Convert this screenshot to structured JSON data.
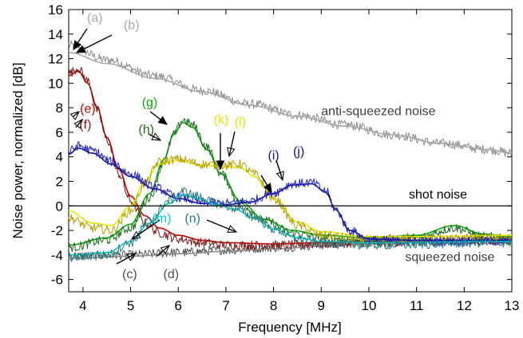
{
  "chart_data": {
    "type": "line",
    "xlabel": "Frequency [MHz]",
    "ylabel": "Noise power, normalized [dB]",
    "xlim": [
      3.7,
      13
    ],
    "ylim": [
      -7,
      16
    ],
    "xticks": [
      "4",
      "5",
      "6",
      "7",
      "8",
      "9",
      "10",
      "11",
      "12",
      "13"
    ],
    "yticks": [
      "-6",
      "-4",
      "-2",
      "0",
      "2",
      "4",
      "6",
      "8",
      "10",
      "12",
      "14",
      "16"
    ],
    "grid": false,
    "legend": "none",
    "colors": {
      "gray_measured": "#8c8c8c",
      "gray_fit": "#a8a8a8",
      "dark_gray": "#505050",
      "red": "#cc0000",
      "dark_red": "#7a1a1a",
      "green": "#00b000",
      "dark_green": "#1f6a1f",
      "yellow": "#e6e600",
      "olive": "#b3a300",
      "blue": "#1010a0",
      "cyan": "#00c8c8",
      "teal": "#2a7f7f",
      "black": "#000000"
    },
    "series": [
      {
        "key": "a",
        "color": "#8c8c8c",
        "style": "noisy",
        "x": [
          3.7,
          4.5,
          5.5,
          6.5,
          7.5,
          8.5,
          9.5,
          10.5,
          11.5,
          12.5,
          13
        ],
        "y": [
          13.1,
          11.9,
          10.6,
          9.4,
          8.3,
          7.4,
          6.6,
          5.8,
          5.1,
          4.6,
          4.3
        ]
      },
      {
        "key": "b",
        "color": "#a8a8a8",
        "style": "smooth",
        "x": [
          3.7,
          4.5,
          5.5,
          6.5,
          7.5,
          8.5,
          9.5,
          10.5,
          11.5,
          12.5,
          13
        ],
        "y": [
          12.5,
          11.6,
          10.4,
          9.3,
          8.2,
          7.3,
          6.5,
          5.8,
          5.1,
          4.6,
          4.3
        ]
      },
      {
        "key": "c",
        "color": "#505050",
        "style": "noisy",
        "x": [
          3.7,
          5,
          6,
          7,
          8,
          9,
          10,
          11,
          12,
          13
        ],
        "y": [
          -4.1,
          -4.0,
          -3.8,
          -3.6,
          -3.4,
          -3.2,
          -3.0,
          -2.9,
          -2.8,
          -2.7
        ]
      },
      {
        "key": "d",
        "color": "#8c8c8c",
        "style": "smooth",
        "x": [
          3.7,
          5,
          6,
          7,
          8,
          9,
          10,
          11,
          12,
          13
        ],
        "y": [
          -4.3,
          -4.1,
          -3.9,
          -3.7,
          -3.5,
          -3.3,
          -3.1,
          -3.0,
          -2.9,
          -2.8
        ]
      },
      {
        "key": "e",
        "color": "#cc0000",
        "style": "smooth",
        "x": [
          3.7,
          3.9,
          4.1,
          4.3,
          4.5,
          4.75,
          5.0,
          5.3,
          5.6,
          6.0,
          6.5,
          7.0,
          8.0,
          9.0,
          10.0,
          13.0
        ],
        "y": [
          10.6,
          11.0,
          10.0,
          8.0,
          5.6,
          3.0,
          0.8,
          -0.8,
          -1.8,
          -2.4,
          -2.8,
          -3.0,
          -3.1,
          -3.0,
          -2.9,
          -2.8
        ]
      },
      {
        "key": "f",
        "color": "#7a1a1a",
        "style": "noisy",
        "x": [
          3.7,
          3.9,
          4.1,
          4.3,
          4.5,
          4.75,
          5.0,
          5.3,
          5.6,
          6.0,
          6.5,
          7.0,
          8.0,
          9.0,
          10.0,
          13.0
        ],
        "y": [
          10.8,
          11.2,
          10.2,
          7.8,
          5.4,
          2.6,
          0.4,
          -1.4,
          -2.2,
          -2.7,
          -3.0,
          -3.2,
          -3.2,
          -3.1,
          -3.0,
          -2.8
        ]
      },
      {
        "key": "g",
        "color": "#00b000",
        "style": "smooth",
        "x": [
          3.7,
          4.5,
          5.0,
          5.4,
          5.7,
          5.9,
          6.1,
          6.3,
          6.6,
          6.9,
          7.3,
          7.8,
          8.4,
          9.0,
          10.0,
          11.0,
          11.8,
          12.4,
          13.0
        ],
        "y": [
          -3.2,
          -2.6,
          -1.5,
          1.0,
          3.8,
          5.8,
          6.8,
          6.4,
          4.6,
          2.6,
          0.4,
          -1.1,
          -2.0,
          -2.4,
          -2.6,
          -2.4,
          -1.6,
          -2.3,
          -2.5
        ]
      },
      {
        "key": "h",
        "color": "#1f6a1f",
        "style": "noisy",
        "x": [
          3.7,
          4.5,
          5.0,
          5.4,
          5.7,
          5.9,
          6.1,
          6.3,
          6.6,
          6.9,
          7.3,
          7.8,
          8.4,
          9.0,
          10.0,
          11.0,
          11.8,
          12.4,
          13.0
        ],
        "y": [
          -3.4,
          -2.8,
          -1.8,
          0.7,
          3.6,
          5.8,
          7.0,
          6.6,
          4.8,
          2.6,
          0.2,
          -1.2,
          -2.2,
          -2.6,
          -2.8,
          -2.6,
          -1.8,
          -2.5,
          -2.7
        ]
      },
      {
        "key": "k",
        "color": "#e6e600",
        "style": "smooth",
        "x": [
          3.7,
          4.2,
          4.6,
          5.0,
          5.3,
          5.6,
          6.0,
          6.5,
          7.0,
          7.3,
          7.6,
          8.0,
          8.5,
          9.0,
          10.0,
          11.0,
          13.0
        ],
        "y": [
          -0.4,
          -1.4,
          -1.6,
          0.0,
          2.0,
          3.4,
          3.7,
          3.3,
          3.2,
          3.1,
          2.4,
          0.6,
          -1.3,
          -2.1,
          -2.5,
          -2.5,
          -2.4
        ]
      },
      {
        "key": "l",
        "color": "#b3a300",
        "style": "noisy",
        "x": [
          3.7,
          4.2,
          4.6,
          5.0,
          5.3,
          5.6,
          6.0,
          6.5,
          7.0,
          7.3,
          7.6,
          8.0,
          8.5,
          9.0,
          10.0,
          11.0,
          13.0
        ],
        "y": [
          -1.0,
          -1.8,
          -2.0,
          -0.4,
          1.8,
          3.6,
          3.8,
          3.4,
          3.3,
          3.4,
          2.6,
          0.6,
          -1.6,
          -2.4,
          -2.8,
          -2.7,
          -2.6
        ]
      },
      {
        "key": "i",
        "color": "#1010a0",
        "style": "smooth",
        "x": [
          3.7,
          3.9,
          4.2,
          4.6,
          5.0,
          5.5,
          6.0,
          6.5,
          7.0,
          7.5,
          8.0,
          8.4,
          8.8,
          9.1,
          9.3,
          9.6,
          10.0,
          11.0,
          13.0
        ],
        "y": [
          4.2,
          4.7,
          4.3,
          3.4,
          2.4,
          1.4,
          0.6,
          0.2,
          0.1,
          0.3,
          1.0,
          1.7,
          1.8,
          1.1,
          -0.3,
          -2.0,
          -2.7,
          -2.8,
          -2.8
        ]
      },
      {
        "key": "j",
        "color": "#2020c0",
        "style": "noisy",
        "x": [
          3.7,
          3.9,
          4.2,
          4.6,
          5.0,
          5.5,
          6.0,
          6.5,
          7.0,
          7.5,
          8.0,
          8.4,
          8.8,
          9.1,
          9.3,
          9.6,
          10.0,
          11.0,
          13.0
        ],
        "y": [
          4.4,
          4.9,
          4.5,
          3.6,
          2.6,
          1.5,
          0.7,
          0.3,
          0.2,
          0.4,
          1.1,
          1.8,
          1.9,
          1.2,
          -0.3,
          -2.0,
          -2.8,
          -2.9,
          -2.9
        ]
      },
      {
        "key": "m",
        "color": "#00c8c8",
        "style": "smooth",
        "x": [
          3.7,
          4.5,
          5.0,
          5.4,
          5.8,
          6.1,
          6.4,
          6.8,
          7.2,
          7.6,
          8.0,
          8.5,
          9.0,
          10.0,
          13.0
        ],
        "y": [
          -4.0,
          -3.8,
          -2.9,
          -1.4,
          0.2,
          0.9,
          0.6,
          0.1,
          -0.3,
          -1.0,
          -1.9,
          -2.6,
          -2.9,
          -3.0,
          -2.9
        ]
      },
      {
        "key": "n",
        "color": "#2a7f7f",
        "style": "noisy",
        "x": [
          3.7,
          4.5,
          5.0,
          5.4,
          5.8,
          6.1,
          6.4,
          6.8,
          7.2,
          7.6,
          8.0,
          8.5,
          9.0,
          10.0,
          13.0
        ],
        "y": [
          -4.2,
          -4.0,
          -3.0,
          -1.2,
          0.4,
          1.2,
          0.8,
          0.2,
          -0.2,
          -0.9,
          -1.9,
          -2.7,
          -3.0,
          -3.2,
          -3.0
        ]
      }
    ],
    "reference_lines": [
      {
        "label": "shot noise",
        "y": 0
      }
    ],
    "annotations": [
      {
        "text": "anti-squeezed noise",
        "x": 10.2,
        "y": 7.4,
        "color": "#404040"
      },
      {
        "text": "shot noise",
        "x": 11.45,
        "y": 0.6,
        "color": "#000000"
      },
      {
        "text": "squeezed noise",
        "x": 11.7,
        "y": -4.5,
        "color": "#404040"
      },
      {
        "text": "(a)",
        "x": 4.25,
        "y": 15.0,
        "color": "#a8a8a8"
      },
      {
        "text": "(b)",
        "x": 5.02,
        "y": 14.4,
        "color": "#a8a8a8"
      },
      {
        "text": "(c)",
        "x": 4.98,
        "y": -5.9,
        "color": "#505050"
      },
      {
        "text": "(d)",
        "x": 5.85,
        "y": -5.9,
        "color": "#505050"
      },
      {
        "text": "(e)",
        "x": 4.1,
        "y": 7.6,
        "color": "#cc0000"
      },
      {
        "text": "(f)",
        "x": 4.05,
        "y": 6.3,
        "color": "#7a1a1a"
      },
      {
        "text": "(g)",
        "x": 5.4,
        "y": 8.1,
        "color": "#00b000"
      },
      {
        "text": "(h)",
        "x": 5.33,
        "y": 5.9,
        "color": "#1f6a1f"
      },
      {
        "text": "(k)",
        "x": 6.9,
        "y": 6.7,
        "color": "#e6e600"
      },
      {
        "text": "(l)",
        "x": 7.3,
        "y": 6.5,
        "color": "#e6e600"
      },
      {
        "text": "(i)",
        "x": 8.0,
        "y": 3.8,
        "color": "#1010a0"
      },
      {
        "text": "(j)",
        "x": 8.53,
        "y": 4.1,
        "color": "#1010a0"
      },
      {
        "text": "(m)",
        "x": 5.65,
        "y": -1.35,
        "color": "#00c8c8"
      },
      {
        "text": "(n)",
        "x": 6.3,
        "y": -1.35,
        "color": "#2a7f7f"
      }
    ]
  }
}
